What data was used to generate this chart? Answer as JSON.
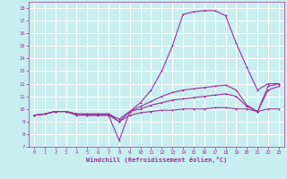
{
  "xlabel": "Windchill (Refroidissement éolien,°C)",
  "ylabel": "",
  "xlim": [
    -0.5,
    23.5
  ],
  "ylim": [
    7,
    18.5
  ],
  "yticks": [
    7,
    8,
    9,
    10,
    11,
    12,
    13,
    14,
    15,
    16,
    17,
    18
  ],
  "xticks": [
    0,
    1,
    2,
    3,
    4,
    5,
    6,
    7,
    8,
    9,
    10,
    11,
    12,
    13,
    14,
    15,
    16,
    17,
    18,
    19,
    20,
    21,
    22,
    23
  ],
  "bg_color": "#c8eef0",
  "line_color": "#993399",
  "grid_color": "#ffffff",
  "line1": [
    9.5,
    9.6,
    9.8,
    9.8,
    9.5,
    9.5,
    9.5,
    9.5,
    7.5,
    9.8,
    10.5,
    11.5,
    13.0,
    15.0,
    17.5,
    17.7,
    17.8,
    17.8,
    17.4,
    15.2,
    13.3,
    11.5,
    12.0,
    12.0
  ],
  "line2": [
    9.5,
    9.6,
    9.8,
    9.8,
    9.6,
    9.6,
    9.6,
    9.6,
    9.0,
    9.8,
    10.2,
    10.6,
    11.0,
    11.3,
    11.5,
    11.6,
    11.7,
    11.8,
    11.9,
    11.5,
    10.3,
    9.8,
    11.8,
    12.0
  ],
  "line3": [
    9.5,
    9.6,
    9.8,
    9.8,
    9.6,
    9.6,
    9.6,
    9.6,
    9.2,
    9.8,
    10.0,
    10.3,
    10.5,
    10.7,
    10.8,
    10.9,
    11.0,
    11.1,
    11.2,
    11.0,
    10.2,
    9.8,
    11.5,
    11.8
  ],
  "line4": [
    9.5,
    9.6,
    9.8,
    9.8,
    9.6,
    9.5,
    9.5,
    9.5,
    9.0,
    9.5,
    9.7,
    9.8,
    9.9,
    9.9,
    10.0,
    10.0,
    10.0,
    10.1,
    10.1,
    10.0,
    10.0,
    9.8,
    10.0,
    10.0
  ]
}
